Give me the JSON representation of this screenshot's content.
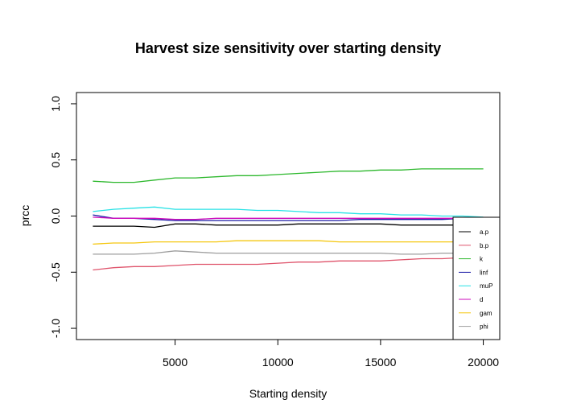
{
  "chart_data": {
    "type": "line",
    "title": "Harvest size sensitivity over starting density",
    "xlabel": "Starting density",
    "ylabel": "prcc",
    "xlim": [
      200,
      20800
    ],
    "ylim": [
      -1.1,
      1.1
    ],
    "x_ticks": [
      5000,
      10000,
      15000,
      20000
    ],
    "x_tick_labels": [
      "5000",
      "10000",
      "15000",
      "20000"
    ],
    "y_ticks": [
      -1.0,
      -0.5,
      0.0,
      0.5,
      1.0
    ],
    "y_tick_labels": [
      "-1.0",
      "-0.5",
      "0.0",
      "0.5",
      "1.0"
    ],
    "grid": false,
    "legend_position": "bottom-right",
    "x": [
      1000,
      2000,
      3000,
      4000,
      5000,
      6000,
      7000,
      8000,
      9000,
      10000,
      11000,
      12000,
      13000,
      14000,
      15000,
      16000,
      17000,
      18000,
      19000,
      20000
    ],
    "series": [
      {
        "name": "a.p",
        "color": "#000000",
        "values": [
          -0.09,
          -0.09,
          -0.09,
          -0.1,
          -0.07,
          -0.07,
          -0.08,
          -0.08,
          -0.08,
          -0.08,
          -0.07,
          -0.07,
          -0.07,
          -0.07,
          -0.07,
          -0.08,
          -0.08,
          -0.08,
          -0.08,
          -0.08
        ]
      },
      {
        "name": "b.p",
        "color": "#DF536B",
        "values": [
          -0.48,
          -0.46,
          -0.45,
          -0.45,
          -0.44,
          -0.43,
          -0.43,
          -0.43,
          -0.43,
          -0.42,
          -0.41,
          -0.41,
          -0.4,
          -0.4,
          -0.4,
          -0.39,
          -0.38,
          -0.38,
          -0.37,
          -0.37
        ]
      },
      {
        "name": "k",
        "color": "#2DB82D",
        "values": [
          0.31,
          0.3,
          0.3,
          0.32,
          0.34,
          0.34,
          0.35,
          0.36,
          0.36,
          0.37,
          0.38,
          0.39,
          0.4,
          0.4,
          0.41,
          0.41,
          0.42,
          0.42,
          0.42,
          0.42
        ]
      },
      {
        "name": "linf",
        "color": "#1a1aa6",
        "values": [
          0.01,
          -0.02,
          -0.02,
          -0.03,
          -0.04,
          -0.04,
          -0.04,
          -0.04,
          -0.04,
          -0.04,
          -0.04,
          -0.04,
          -0.04,
          -0.03,
          -0.03,
          -0.03,
          -0.03,
          -0.03,
          -0.02,
          -0.02
        ]
      },
      {
        "name": "muP",
        "color": "#28E2E5",
        "values": [
          0.04,
          0.06,
          0.07,
          0.08,
          0.06,
          0.06,
          0.06,
          0.06,
          0.05,
          0.05,
          0.04,
          0.03,
          0.03,
          0.02,
          0.02,
          0.01,
          0.01,
          0.0,
          0.0,
          -0.01
        ]
      },
      {
        "name": "d",
        "color": "#CD0BBC",
        "values": [
          -0.01,
          -0.02,
          -0.02,
          -0.02,
          -0.03,
          -0.03,
          -0.02,
          -0.02,
          -0.02,
          -0.02,
          -0.02,
          -0.02,
          -0.02,
          -0.02,
          -0.02,
          -0.02,
          -0.02,
          -0.02,
          -0.02,
          -0.02
        ]
      },
      {
        "name": "gam",
        "color": "#F5C710",
        "values": [
          -0.25,
          -0.24,
          -0.24,
          -0.23,
          -0.23,
          -0.23,
          -0.23,
          -0.22,
          -0.22,
          -0.22,
          -0.22,
          -0.22,
          -0.23,
          -0.23,
          -0.23,
          -0.23,
          -0.23,
          -0.23,
          -0.23,
          -0.23
        ]
      },
      {
        "name": "phi",
        "color": "#9E9E9E",
        "values": [
          -0.34,
          -0.34,
          -0.34,
          -0.33,
          -0.31,
          -0.32,
          -0.33,
          -0.33,
          -0.33,
          -0.33,
          -0.33,
          -0.33,
          -0.33,
          -0.33,
          -0.33,
          -0.34,
          -0.34,
          -0.33,
          -0.33,
          -0.33
        ]
      }
    ]
  }
}
